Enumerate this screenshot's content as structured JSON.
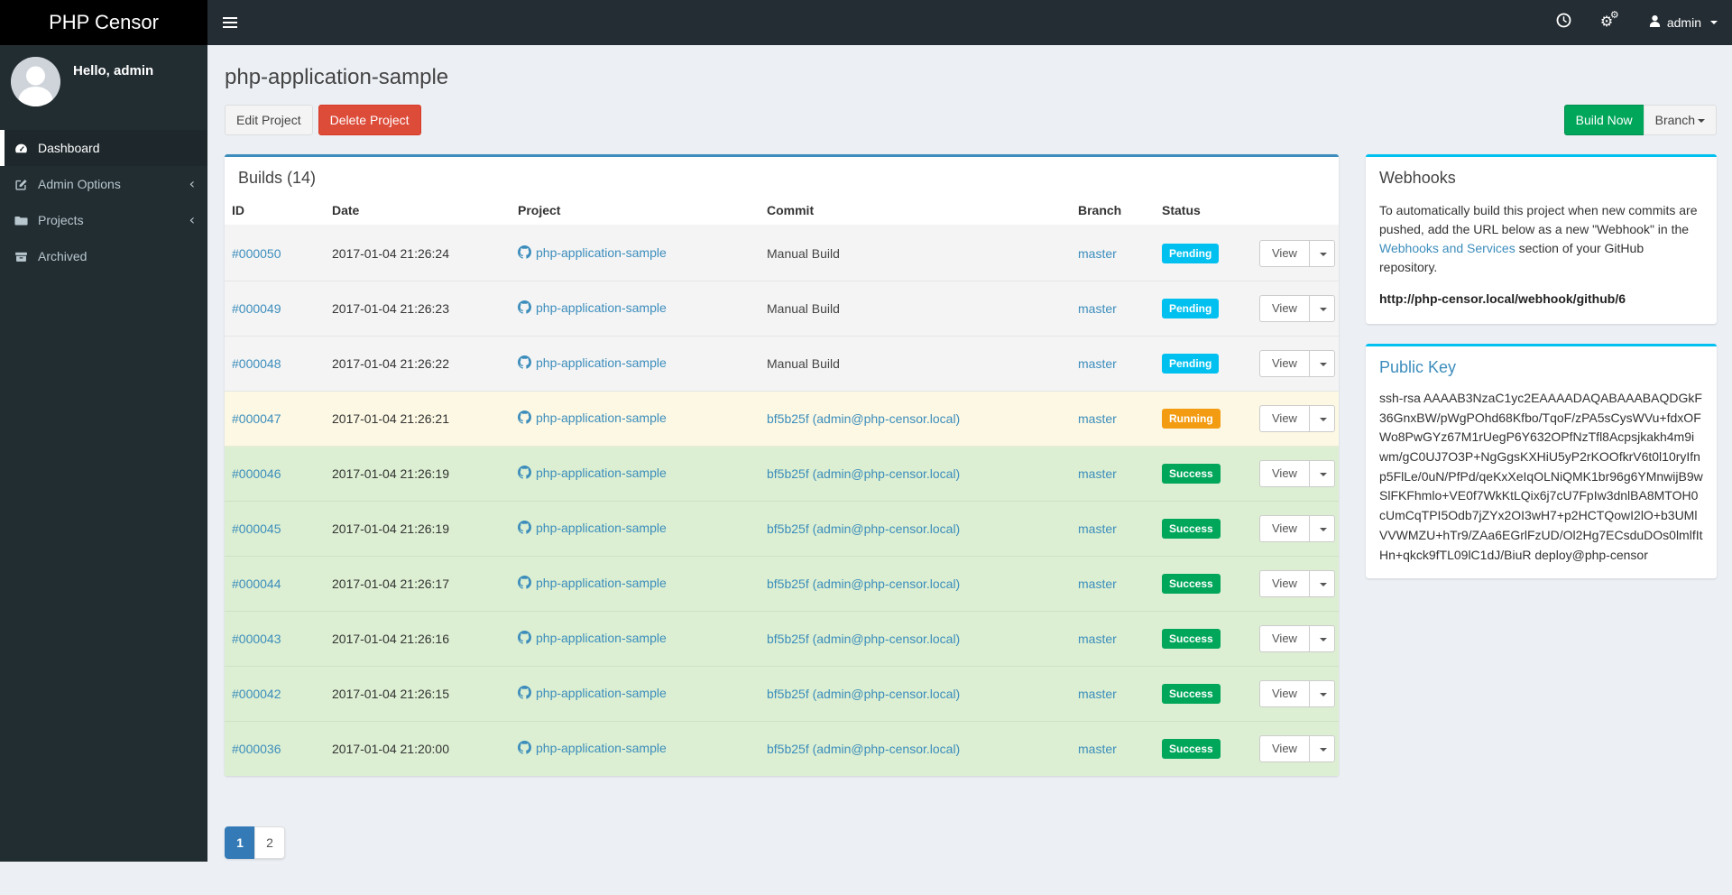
{
  "app": {
    "brand": "PHP Censor"
  },
  "navbar": {
    "username": "admin"
  },
  "sidebar": {
    "greeting": "Hello, admin",
    "items": [
      {
        "label": "Dashboard",
        "icon": "dashboard-icon",
        "active": true,
        "expandable": false
      },
      {
        "label": "Admin Options",
        "icon": "edit-icon",
        "active": false,
        "expandable": true
      },
      {
        "label": "Projects",
        "icon": "folder-icon",
        "active": false,
        "expandable": true
      },
      {
        "label": "Archived",
        "icon": "archive-icon",
        "active": false,
        "expandable": false
      }
    ]
  },
  "page": {
    "title": "php-application-sample",
    "edit_label": "Edit Project",
    "delete_label": "Delete Project",
    "build_now_label": "Build Now",
    "branch_label": "Branch"
  },
  "builds_panel": {
    "title": "Builds (14)",
    "columns": [
      "ID",
      "Date",
      "Project",
      "Commit",
      "Branch",
      "Status"
    ],
    "action_label": "View",
    "rows": [
      {
        "id": "#000050",
        "date": "2017-01-04 21:26:24",
        "project": "php-application-sample",
        "commit": "Manual Build",
        "commit_is_link": false,
        "branch": "master",
        "status": "Pending"
      },
      {
        "id": "#000049",
        "date": "2017-01-04 21:26:23",
        "project": "php-application-sample",
        "commit": "Manual Build",
        "commit_is_link": false,
        "branch": "master",
        "status": "Pending"
      },
      {
        "id": "#000048",
        "date": "2017-01-04 21:26:22",
        "project": "php-application-sample",
        "commit": "Manual Build",
        "commit_is_link": false,
        "branch": "master",
        "status": "Pending"
      },
      {
        "id": "#000047",
        "date": "2017-01-04 21:26:21",
        "project": "php-application-sample",
        "commit": "bf5b25f (admin@php-censor.local)",
        "commit_is_link": true,
        "branch": "master",
        "status": "Running"
      },
      {
        "id": "#000046",
        "date": "2017-01-04 21:26:19",
        "project": "php-application-sample",
        "commit": "bf5b25f (admin@php-censor.local)",
        "commit_is_link": true,
        "branch": "master",
        "status": "Success"
      },
      {
        "id": "#000045",
        "date": "2017-01-04 21:26:19",
        "project": "php-application-sample",
        "commit": "bf5b25f (admin@php-censor.local)",
        "commit_is_link": true,
        "branch": "master",
        "status": "Success"
      },
      {
        "id": "#000044",
        "date": "2017-01-04 21:26:17",
        "project": "php-application-sample",
        "commit": "bf5b25f (admin@php-censor.local)",
        "commit_is_link": true,
        "branch": "master",
        "status": "Success"
      },
      {
        "id": "#000043",
        "date": "2017-01-04 21:26:16",
        "project": "php-application-sample",
        "commit": "bf5b25f (admin@php-censor.local)",
        "commit_is_link": true,
        "branch": "master",
        "status": "Success"
      },
      {
        "id": "#000042",
        "date": "2017-01-04 21:26:15",
        "project": "php-application-sample",
        "commit": "bf5b25f (admin@php-censor.local)",
        "commit_is_link": true,
        "branch": "master",
        "status": "Success"
      },
      {
        "id": "#000036",
        "date": "2017-01-04 21:20:00",
        "project": "php-application-sample",
        "commit": "bf5b25f (admin@php-censor.local)",
        "commit_is_link": true,
        "branch": "master",
        "status": "Success"
      }
    ]
  },
  "pagination": {
    "pages": [
      "1",
      "2"
    ],
    "active_page": "1"
  },
  "webhooks_panel": {
    "title": "Webhooks",
    "text_before": "To automatically build this project when new commits are pushed, add the URL below as a new \"Webhook\" in the ",
    "link_text": "Webhooks and Services",
    "text_after": " section of your GitHub repository.",
    "webhook_url": "http://php-censor.local/webhook/github/6"
  },
  "public_key_panel": {
    "title": "Public Key",
    "key": "ssh-rsa AAAAB3NzaC1yc2EAAAADAQABAAABAQDGkF36GnxBW/pWgPOhd68Kfbo/TqoF/zPA5sCysWVu+fdxOFWo8PwGYz67M1rUegP6Y632OPfNzTfl8Acpsjkakh4m9iwm/gC0UJ7O3P+NgGgsKXHiU5yP2rKOOfkrV6t0l10ryIfnp5FlLe/0uN/PfPd/qeKxXeIqOLNiQMK1br96g6YMnwijB9wSlFKFhmlo+VE0f7WkKtLQix6j7cU7FpIw3dnlBA8MTOH0cUmCqTPI5Odb7jZYx2OI3wH7+p2HCTQowI2lO+b3UMlVVWMZU+hTr9/ZAa6EGrlFzUD/Ol2Hg7ECsduDOs0lmlfItHn+qkck9fTL09lC1dJ/BiuR deploy@php-censor"
  },
  "colors": {
    "primary": "#3c8dbc",
    "info": "#00c0ef",
    "success": "#00a65a",
    "warning": "#f39c12",
    "danger": "#dd4b39",
    "status_badge": {
      "Pending": "#00c0ef",
      "Running": "#f39c12",
      "Success": "#00a65a"
    },
    "row_background": {
      "Pending": "#f4f4f4",
      "Running": "#fcf8e3",
      "Success": "#dcefd2"
    }
  }
}
